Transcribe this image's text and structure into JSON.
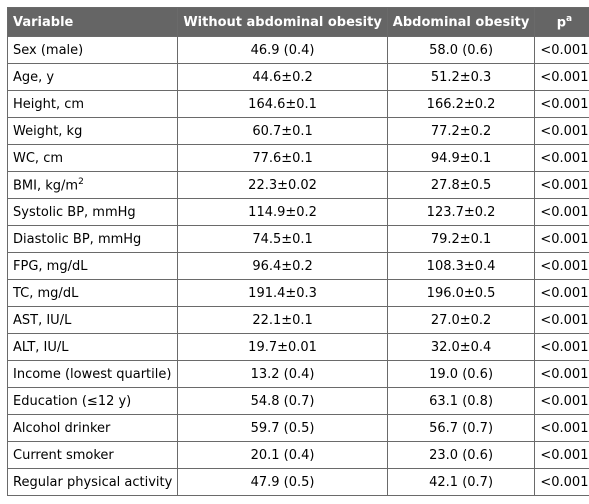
{
  "table": {
    "header": [
      "Variable",
      "Without abdominal obesity",
      "Abdominal obesity",
      {
        "text": "p",
        "sup": "a"
      }
    ],
    "rows": [
      [
        "Sex (male)",
        "46.9 (0.4)",
        "58.0 (0.6)",
        "<0.001"
      ],
      [
        "Age, y",
        "44.6±0.2",
        "51.2±0.3",
        "<0.001"
      ],
      [
        "Height, cm",
        "164.6±0.1",
        "166.2±0.2",
        "<0.001"
      ],
      [
        "Weight, kg",
        "60.7±0.1",
        "77.2±0.2",
        "<0.001"
      ],
      [
        "WC, cm",
        "77.6±0.1",
        "94.9±0.1",
        "<0.001"
      ],
      [
        {
          "text": "BMI, kg/m",
          "sup": "2"
        },
        "22.3±0.02",
        "27.8±0.5",
        "<0.001"
      ],
      [
        "Systolic BP, mmHg",
        "114.9±0.2",
        "123.7±0.2",
        "<0.001"
      ],
      [
        "Diastolic BP, mmHg",
        "74.5±0.1",
        "79.2±0.1",
        "<0.001"
      ],
      [
        "FPG, mg/dL",
        "96.4±0.2",
        "108.3±0.4",
        "<0.001"
      ],
      [
        "TC, mg/dL",
        "191.4±0.3",
        "196.0±0.5",
        "<0.001"
      ],
      [
        "AST, IU/L",
        "22.1±0.1",
        "27.0±0.2",
        "<0.001"
      ],
      [
        "ALT, IU/L",
        "19.7±0.01",
        "32.0±0.4",
        "<0.001"
      ],
      [
        "Income (lowest quartile)",
        "13.2 (0.4)",
        "19.0 (0.6)",
        "<0.001"
      ],
      [
        "Education (≤12 y)",
        "54.8 (0.7)",
        "63.1 (0.8)",
        "<0.001"
      ],
      [
        "Alcohol drinker",
        "59.7 (0.5)",
        "56.7 (0.7)",
        "<0.001"
      ],
      [
        "Current smoker",
        "20.1 (0.4)",
        "23.0 (0.6)",
        "<0.001"
      ],
      [
        "Regular physical activity",
        "47.9 (0.5)",
        "42.1 (0.7)",
        "<0.001"
      ]
    ]
  }
}
